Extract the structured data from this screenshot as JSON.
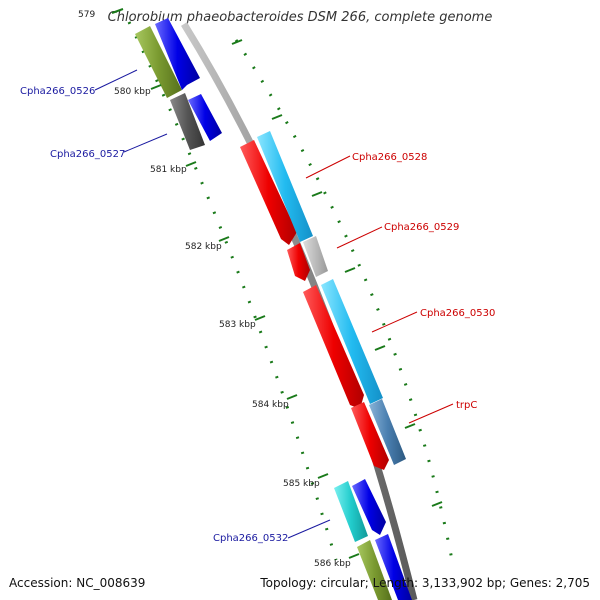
{
  "title": "Chlorobium phaeobacteroides DSM 266, complete genome",
  "footer": {
    "accession": "Accession: NC_008639",
    "summary": "Topology: circular; Length: 3,133,902 bp; Genes: 2,705"
  },
  "ticks": [
    "579",
    "580 kbp",
    "581 kbp",
    "582 kbp",
    "583 kbp",
    "584 kbp",
    "585 kbp",
    "586 kbp"
  ],
  "colors": {
    "backbone": "#7a7a7a",
    "tick": "#1a7a1a",
    "label_blue": "#1a1aa0",
    "label_red": "#cc0000"
  },
  "genes": [
    {
      "label": "Cpha266_0526",
      "color": "#1a1aa0",
      "fill": "#0000ee"
    },
    {
      "label": "Cpha266_0527",
      "color": "#1a1aa0",
      "fill": "#555555"
    },
    {
      "label": "Cpha266_0528",
      "color": "#cc0000",
      "fill": "#33ccff"
    },
    {
      "label": "Cpha266_0529",
      "color": "#cc0000",
      "fill": "#bbbbbb"
    },
    {
      "label": "Cpha266_0530",
      "color": "#cc0000",
      "fill": "#33ccff"
    },
    {
      "label": "trpC",
      "color": "#cc0000",
      "fill": "#4a7fa8"
    },
    {
      "label": "Cpha266_0532",
      "color": "#1a1aa0",
      "fill": "#22cccc"
    }
  ]
}
